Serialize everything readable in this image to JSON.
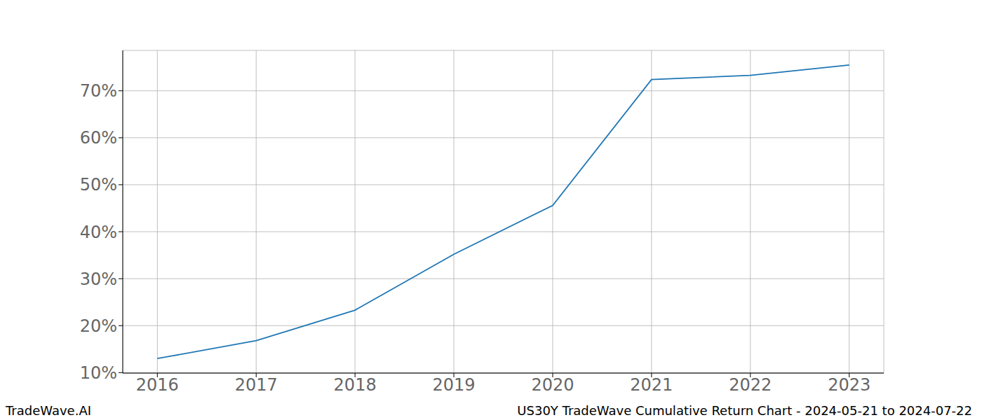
{
  "chart_data": {
    "type": "line",
    "annotations": [
      "TradeWave.AI",
      "US30Y TradeWave Cumulative Return Chart - 2024-05-21 to 2024-07-22"
    ],
    "x": [
      2016,
      2017,
      2018,
      2019,
      2020,
      2021,
      2022,
      2023
    ],
    "values": [
      13.0,
      16.8,
      23.3,
      35.2,
      45.6,
      72.4,
      73.3,
      75.5
    ],
    "color": "#1f77b4",
    "xlim": [
      2015.65,
      2023.35
    ],
    "xticks": [
      2016,
      2017,
      2018,
      2019,
      2020,
      2021,
      2022,
      2023
    ],
    "ylim": [
      9.9,
      78.6
    ],
    "yticks": [
      {
        "value": 10,
        "label": "10%"
      },
      {
        "value": 20,
        "label": "20%"
      },
      {
        "value": 30,
        "label": "30%"
      },
      {
        "value": 40,
        "label": "40%"
      },
      {
        "value": 50,
        "label": "50%"
      },
      {
        "value": 60,
        "label": "60%"
      },
      {
        "value": 70,
        "label": "70%"
      }
    ],
    "grid": true
  }
}
